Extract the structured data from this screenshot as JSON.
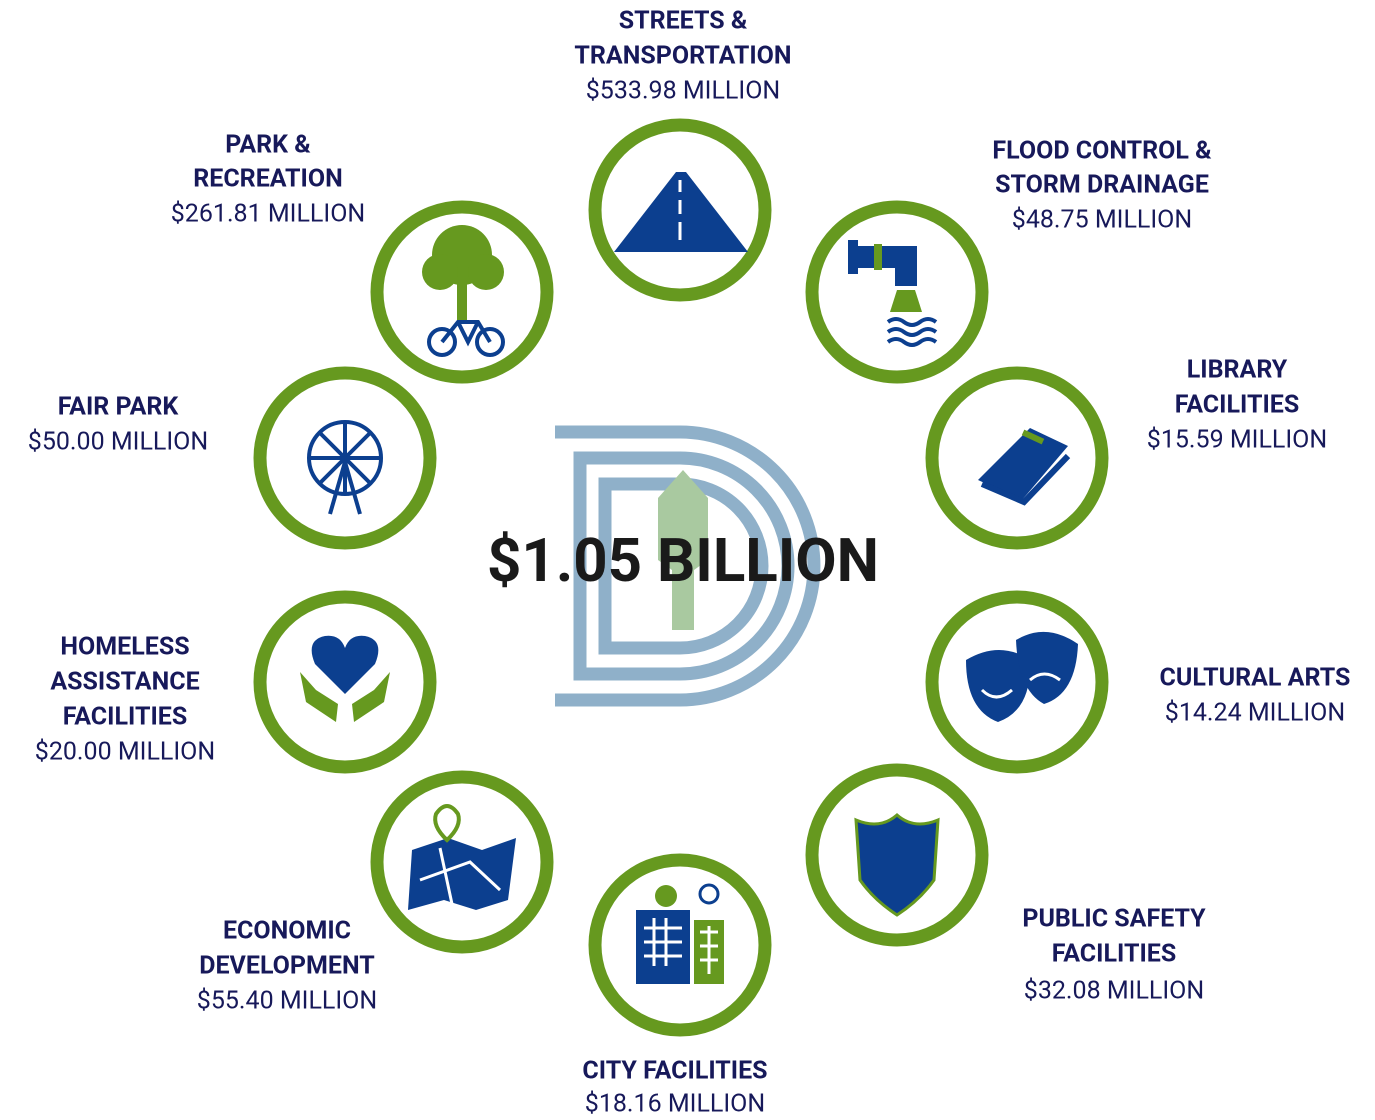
{
  "center_total": "$1.05 BILLION",
  "categories": [
    {
      "name_lines": [
        "STREETS &",
        "TRANSPORTATION"
      ],
      "amount": "$533.98 MILLION"
    },
    {
      "name_lines": [
        "FLOOD CONTROL &",
        "STORM DRAINAGE"
      ],
      "amount": "$48.75 MILLION"
    },
    {
      "name_lines": [
        "LIBRARY",
        "FACILITIES"
      ],
      "amount": "$15.59 MILLION"
    },
    {
      "name_lines": [
        "CULTURAL ARTS"
      ],
      "amount": "$14.24 MILLION"
    },
    {
      "name_lines": [
        "PUBLIC SAFETY",
        "FACILITIES"
      ],
      "amount": "$32.08 MILLION"
    },
    {
      "name_lines": [
        "CITY FACILITIES"
      ],
      "amount": "$18.16 MILLION"
    },
    {
      "name_lines": [
        "ECONOMIC",
        "DEVELOPMENT"
      ],
      "amount": "$55.40 MILLION"
    },
    {
      "name_lines": [
        "HOMELESS",
        "ASSISTANCE",
        "FACILITIES"
      ],
      "amount": "$20.00 MILLION"
    },
    {
      "name_lines": [
        "FAIR PARK"
      ],
      "amount": "$50.00 MILLION"
    },
    {
      "name_lines": [
        "PARK &",
        "RECREATION"
      ],
      "amount": "$261.81 MILLION"
    }
  ]
}
